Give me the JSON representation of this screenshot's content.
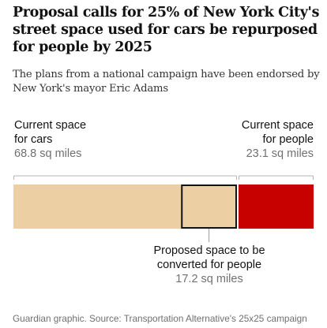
{
  "header": {
    "title": "Proposal calls for 25% of New York City's street space used for cars be repurposed for people by 2025",
    "subtitle": "The plans from a national campaign have been endorsed by New York's mayor Eric Adams"
  },
  "chart_data": {
    "type": "bar",
    "orientation": "horizontal-stacked",
    "unit": "sq miles",
    "segments": [
      {
        "id": "cars",
        "label": "Current space for cars",
        "value": 68.8,
        "value_text": "68.8 sq miles",
        "color": "#ecd0a3"
      },
      {
        "id": "people",
        "label": "Current space for people",
        "value": 23.1,
        "value_text": "23.1 sq miles",
        "color": "#c70000"
      }
    ],
    "highlight": {
      "id": "proposed",
      "label": "Proposed space to be converted for people",
      "value": 17.2,
      "value_text": "17.2 sq miles",
      "within": "cars",
      "position": "end-of-segment"
    },
    "grid": false,
    "legend": "none"
  },
  "footer": {
    "source": "Guardian graphic. Source: Transportation Alternative's 25x25 campaign"
  }
}
